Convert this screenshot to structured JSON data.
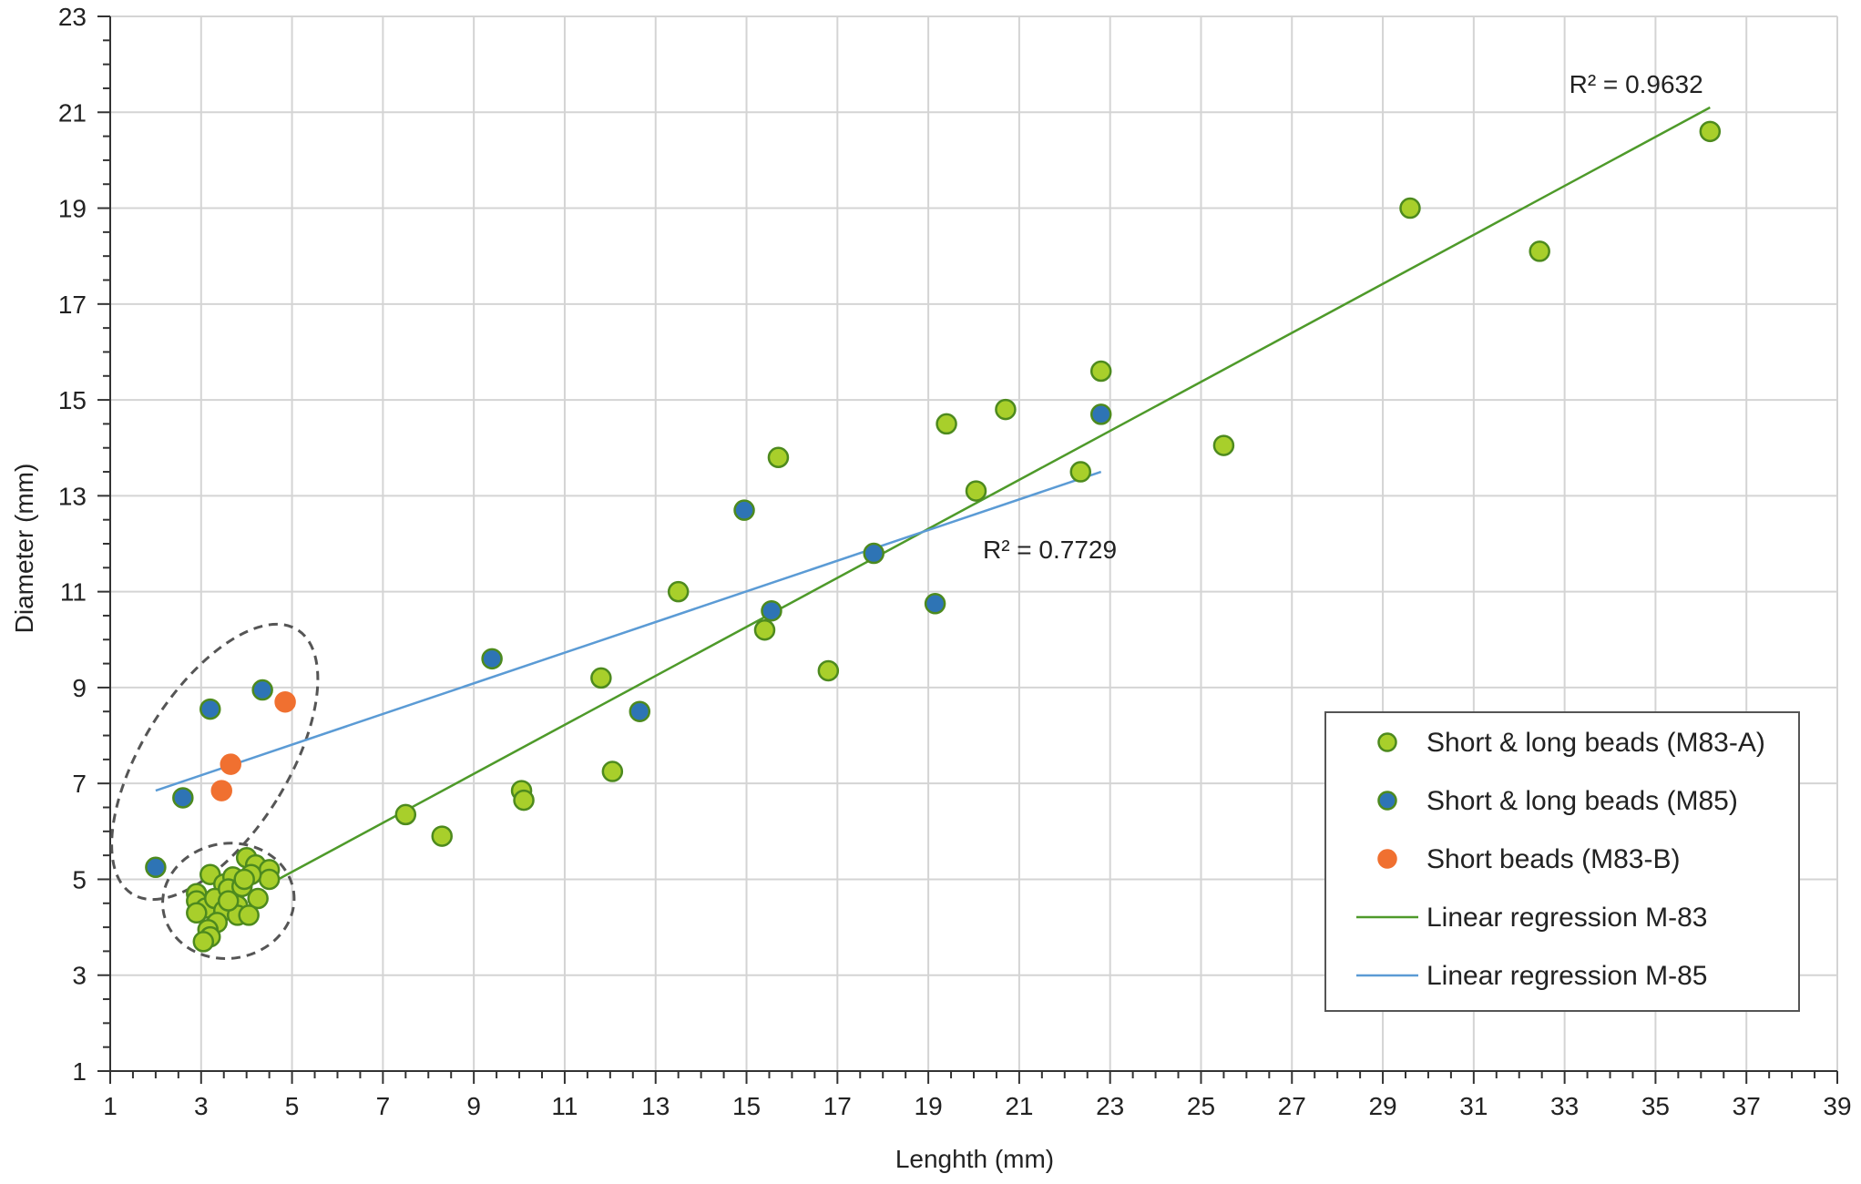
{
  "chart_data": {
    "type": "scatter",
    "title": "",
    "xlabel": "Lenghth (mm)",
    "ylabel": "Diameter (mm)",
    "xlim": [
      1,
      39
    ],
    "ylim": [
      1,
      23
    ],
    "xticks": [
      1,
      3,
      5,
      7,
      9,
      11,
      13,
      15,
      17,
      19,
      21,
      23,
      25,
      27,
      29,
      31,
      33,
      35,
      37,
      39
    ],
    "yticks": [
      1,
      3,
      5,
      7,
      9,
      11,
      13,
      15,
      17,
      19,
      21,
      23
    ],
    "grid": true,
    "legend_position": "bottom-right",
    "series": [
      {
        "name": "Short & long beads (M83-A)",
        "kind": "scatter",
        "color": "#a8cf2b",
        "stroke": "#4d8a1e",
        "points": [
          [
            2.9,
            4.7
          ],
          [
            2.9,
            4.55
          ],
          [
            3.2,
            5.1
          ],
          [
            3.5,
            4.9
          ],
          [
            3.7,
            5.05
          ],
          [
            4.0,
            5.45
          ],
          [
            4.2,
            5.3
          ],
          [
            4.5,
            5.2
          ],
          [
            4.5,
            5.0
          ],
          [
            3.1,
            4.4
          ],
          [
            3.3,
            4.6
          ],
          [
            3.6,
            4.8
          ],
          [
            3.9,
            4.85
          ],
          [
            4.1,
            5.1
          ],
          [
            2.9,
            4.3
          ],
          [
            3.5,
            4.35
          ],
          [
            3.8,
            4.45
          ],
          [
            4.25,
            4.6
          ],
          [
            3.8,
            4.25
          ],
          [
            4.05,
            4.25
          ],
          [
            3.35,
            4.1
          ],
          [
            3.15,
            3.95
          ],
          [
            3.2,
            3.8
          ],
          [
            3.05,
            3.7
          ],
          [
            3.6,
            4.55
          ],
          [
            3.95,
            5.0
          ],
          [
            7.5,
            6.35
          ],
          [
            8.3,
            5.9
          ],
          [
            10.05,
            6.85
          ],
          [
            10.1,
            6.65
          ],
          [
            11.8,
            9.2
          ],
          [
            12.05,
            7.25
          ],
          [
            13.5,
            11.0
          ],
          [
            15.4,
            10.2
          ],
          [
            15.7,
            13.8
          ],
          [
            16.8,
            9.35
          ],
          [
            19.4,
            14.5
          ],
          [
            20.05,
            13.1
          ],
          [
            20.7,
            14.8
          ],
          [
            22.35,
            13.5
          ],
          [
            22.8,
            15.6
          ],
          [
            25.5,
            14.05
          ],
          [
            29.6,
            19.0
          ],
          [
            32.45,
            18.1
          ],
          [
            36.2,
            20.6
          ]
        ]
      },
      {
        "name": "Short & long beads (M85)",
        "kind": "scatter",
        "color": "#2e74b5",
        "stroke": "#4d8a1e",
        "points": [
          [
            2.0,
            5.25
          ],
          [
            2.6,
            6.7
          ],
          [
            3.2,
            8.55
          ],
          [
            4.35,
            8.95
          ],
          [
            9.4,
            9.6
          ],
          [
            12.65,
            8.5
          ],
          [
            14.95,
            12.7
          ],
          [
            15.55,
            10.6
          ],
          [
            17.8,
            11.8
          ],
          [
            19.15,
            10.75
          ],
          [
            22.8,
            14.7
          ]
        ]
      },
      {
        "name": "Short beads (M83-B)",
        "kind": "scatter",
        "color": "#f07030",
        "stroke": "#f07030",
        "points": [
          [
            3.45,
            6.85
          ],
          [
            3.65,
            7.4
          ],
          [
            4.85,
            8.7
          ]
        ]
      },
      {
        "name": "Linear regression M-83",
        "kind": "line",
        "color": "#4e9a2a",
        "points": [
          [
            4.5,
            4.9
          ],
          [
            36.2,
            21.1
          ]
        ]
      },
      {
        "name": "Linear regression M-85",
        "kind": "line",
        "color": "#5b9bd5",
        "points": [
          [
            2.0,
            6.85
          ],
          [
            22.8,
            13.5
          ]
        ]
      }
    ],
    "annotations": [
      {
        "text": "R² = 0.9632",
        "x": 33.1,
        "y": 21.4
      },
      {
        "text": "R² = 0.7729",
        "x": 20.2,
        "y": 11.7
      }
    ],
    "clusters": [
      {
        "cx": 3.6,
        "cy": 4.55,
        "rx": 1.45,
        "ry": 1.2,
        "rotation_deg": -8
      },
      {
        "cx": 3.3,
        "cy": 7.45,
        "rx": 1.6,
        "ry": 3.25,
        "rotation_deg": 32
      }
    ]
  }
}
